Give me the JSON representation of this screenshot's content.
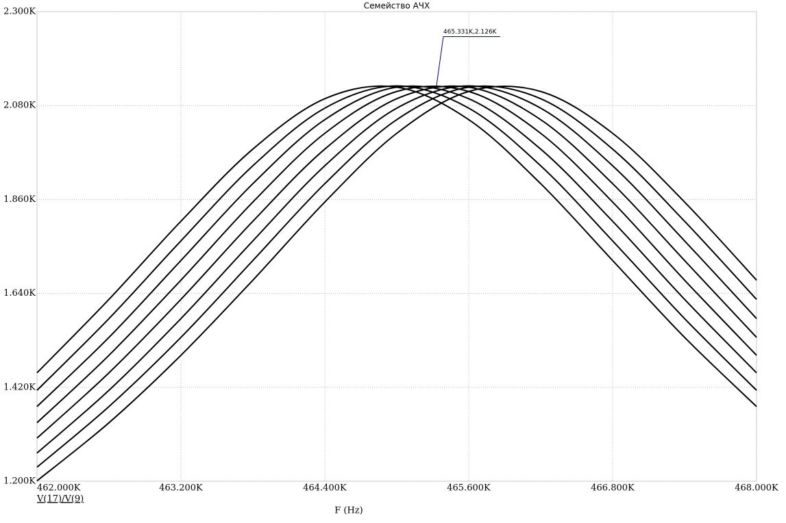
{
  "chart_data": {
    "type": "line",
    "title": "Семейство АЧХ",
    "xlabel": "F (Hz)",
    "legend_label": "V(17)/V(9)",
    "x": [
      462000,
      462600,
      463200,
      463800,
      464400,
      465000,
      465600,
      466200,
      466800,
      467400,
      468000
    ],
    "series": [
      {
        "color": "#000000",
        "values": [
          1454,
          1626,
          1809,
          1978,
          2096,
          2123,
          2047,
          1897,
          1717,
          1537,
          1375
        ]
      },
      {
        "color": "#000000",
        "values": [
          1413,
          1581,
          1763,
          1939,
          2074,
          2126,
          2074,
          1939,
          1763,
          1581,
          1413
        ]
      },
      {
        "color": "#000000",
        "values": [
          1375,
          1537,
          1717,
          1897,
          2047,
          2123,
          2096,
          1978,
          1809,
          1626,
          1454
        ]
      },
      {
        "color": "#000000",
        "values": [
          1337,
          1495,
          1671,
          1854,
          2015,
          2113,
          2113,
          2015,
          1854,
          1671,
          1495
        ]
      },
      {
        "color": "#000000",
        "values": [
          1301,
          1454,
          1626,
          1809,
          1978,
          2096,
          2123,
          2047,
          1897,
          1717,
          1537
        ]
      },
      {
        "color": "#000000",
        "values": [
          1266,
          1413,
          1581,
          1763,
          1939,
          2074,
          2126,
          2074,
          1939,
          1763,
          1581
        ]
      },
      {
        "color": "#000000",
        "values": [
          1233,
          1375,
          1537,
          1717,
          1897,
          2047,
          2123,
          2096,
          1978,
          1809,
          1626
        ]
      },
      {
        "color": "#000000",
        "values": [
          1201,
          1337,
          1495,
          1671,
          1854,
          2015,
          2113,
          2113,
          2015,
          1854,
          1671
        ]
      }
    ],
    "xlim": [
      462000,
      468000
    ],
    "xticks": [
      {
        "value": 462000,
        "label": "462.000K"
      },
      {
        "value": 463200,
        "label": "463.200K"
      },
      {
        "value": 464400,
        "label": "464.400K"
      },
      {
        "value": 465600,
        "label": "465.600K"
      },
      {
        "value": 466800,
        "label": "466.800K"
      },
      {
        "value": 468000,
        "label": "468.000K"
      }
    ],
    "ylim": [
      1200,
      2300
    ],
    "yticks": [
      {
        "value": 1200,
        "label": "1.200K"
      },
      {
        "value": 1420,
        "label": "1.420K"
      },
      {
        "value": 1640,
        "label": "1.640K"
      },
      {
        "value": 1860,
        "label": "1.860K"
      },
      {
        "value": 2080,
        "label": "2.080K"
      },
      {
        "value": 2300,
        "label": "2.300K"
      }
    ],
    "grid": true,
    "annotation": {
      "x": 465331,
      "y": 2126,
      "label": "465.331K,2.126K",
      "color": "#00008b"
    }
  }
}
